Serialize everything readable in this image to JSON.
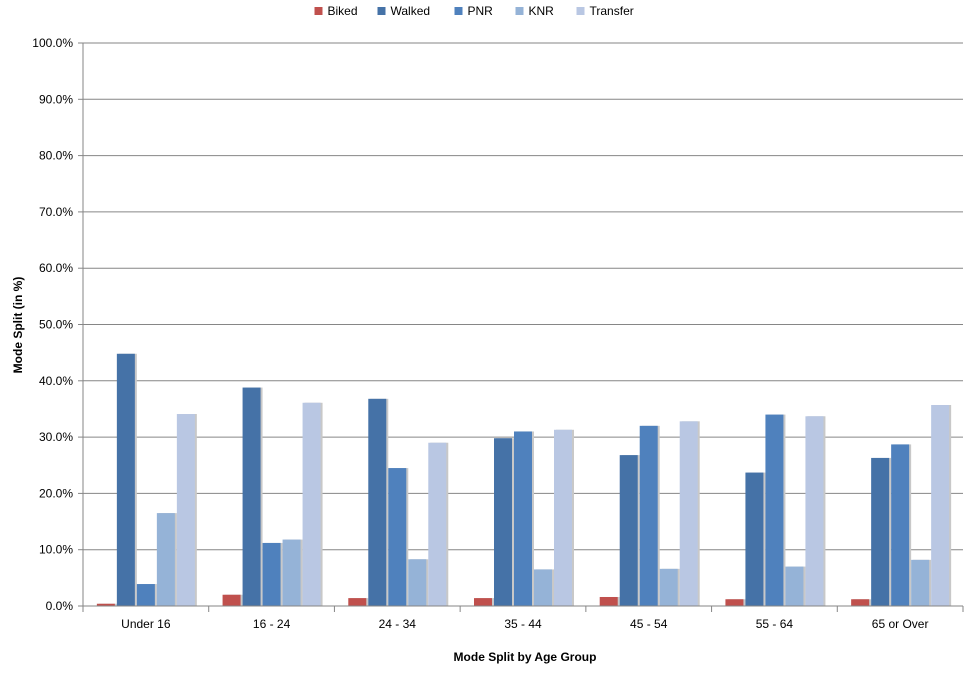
{
  "chart_data": {
    "type": "bar",
    "categories": [
      "Under 16",
      "16 - 24",
      "24 - 34",
      "35 - 44",
      "45 - 54",
      "55 - 64",
      "65 or Over"
    ],
    "series": [
      {
        "name": "Biked",
        "color": "#c0504d",
        "values": [
          0.4,
          2.0,
          1.4,
          1.4,
          1.6,
          1.2,
          1.2
        ]
      },
      {
        "name": "Walked",
        "color": "#4572a7",
        "values": [
          44.8,
          38.8,
          36.8,
          29.8,
          26.8,
          23.7,
          26.3
        ]
      },
      {
        "name": "PNR",
        "color": "#4f81bd",
        "values": [
          3.9,
          11.2,
          24.5,
          31.0,
          32.0,
          34.0,
          28.7
        ]
      },
      {
        "name": "KNR",
        "color": "#95b3d7",
        "values": [
          16.5,
          11.8,
          8.3,
          6.5,
          6.6,
          7.0,
          8.2
        ]
      },
      {
        "name": "Transfer",
        "color": "#b9c7e3",
        "values": [
          34.1,
          36.1,
          29.0,
          31.3,
          32.8,
          33.7,
          35.7
        ]
      }
    ],
    "y_ticks": [
      "0.0%",
      "10.0%",
      "20.0%",
      "30.0%",
      "40.0%",
      "50.0%",
      "60.0%",
      "70.0%",
      "80.0%",
      "90.0%",
      "100.0%"
    ],
    "ylim": [
      0,
      100
    ],
    "xlabel": "Mode Split by Age Group",
    "ylabel": "Mode Split (in %)",
    "title": "",
    "grid": true,
    "legend_position": "top-center"
  }
}
